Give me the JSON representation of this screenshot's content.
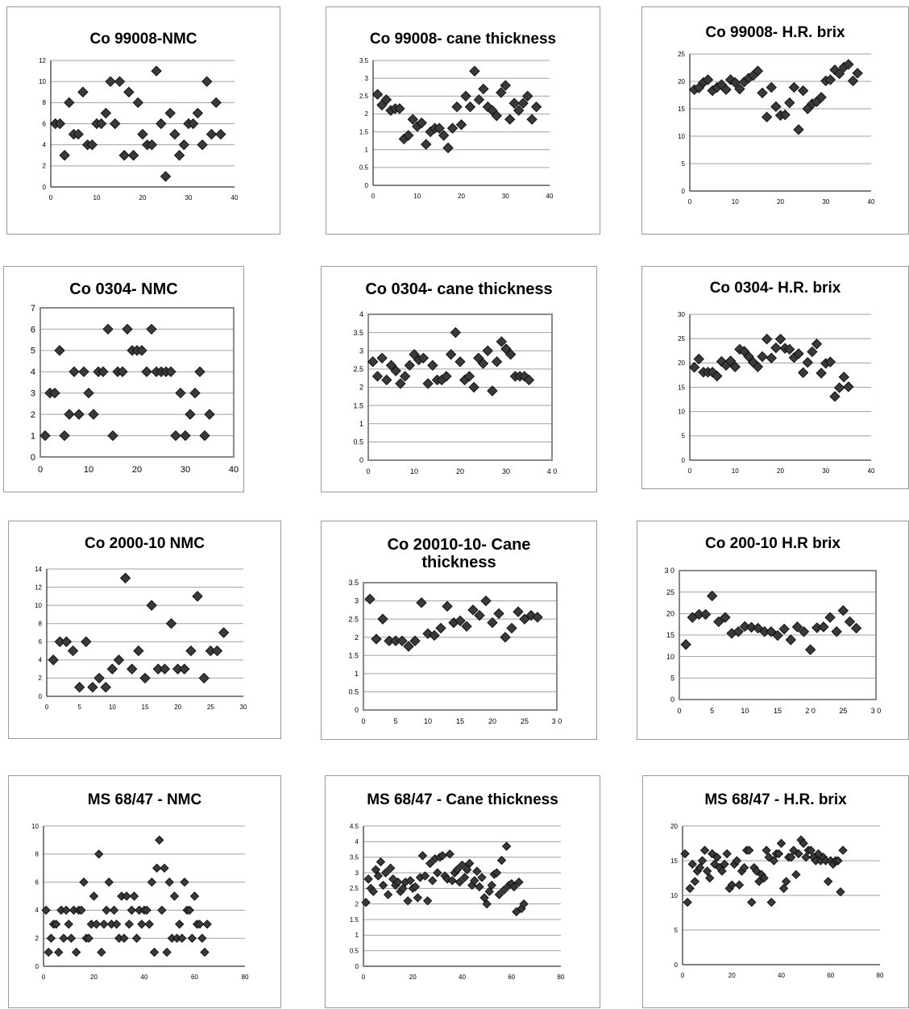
{
  "colors": {
    "marker": "#3a3a3a",
    "grid": "#a0a0a0",
    "frame": "#8a8a8a"
  },
  "chart_data": [
    {
      "type": "scatter",
      "title": "Co 99008-NMC",
      "xlim": [
        0,
        40
      ],
      "ylim": [
        0,
        12
      ],
      "xticks": [
        "0",
        "10",
        "20",
        "30",
        "40"
      ],
      "yticks": [
        "0",
        "2",
        "4",
        "6",
        "8",
        "10",
        "12"
      ],
      "x": [
        1,
        2,
        3,
        4,
        5,
        6,
        7,
        8,
        9,
        10,
        11,
        12,
        13,
        14,
        15,
        16,
        17,
        18,
        19,
        20,
        21,
        22,
        23,
        24,
        25,
        26,
        27,
        28,
        29,
        30,
        31,
        32,
        33,
        34,
        35,
        36,
        37
      ],
      "y": [
        6,
        6,
        3,
        8,
        5,
        5,
        9,
        4,
        4,
        6,
        6,
        7,
        10,
        6,
        10,
        3,
        9,
        3,
        8,
        5,
        4,
        4,
        11,
        6,
        1,
        7,
        5,
        3,
        4,
        6,
        6,
        7,
        4,
        10,
        5,
        8,
        5
      ]
    },
    {
      "type": "scatter",
      "title": "Co 99008- cane thickness",
      "xlim": [
        0,
        40
      ],
      "ylim": [
        0,
        3.5
      ],
      "xticks": [
        "0",
        "10",
        "20",
        "30",
        "40"
      ],
      "yticks": [
        "0",
        "0.5",
        "1",
        "1.5",
        "2",
        "2.5",
        "3",
        "3.5"
      ],
      "x": [
        1,
        2,
        3,
        4,
        5,
        6,
        7,
        8,
        9,
        10,
        11,
        12,
        13,
        14,
        15,
        16,
        17,
        18,
        19,
        20,
        21,
        22,
        23,
        24,
        25,
        26,
        27,
        28,
        29,
        30,
        31,
        32,
        33,
        34,
        35,
        36,
        37
      ],
      "y": [
        2.55,
        2.25,
        2.4,
        2.1,
        2.15,
        2.15,
        1.3,
        1.4,
        1.85,
        1.65,
        1.75,
        1.15,
        1.5,
        1.6,
        1.6,
        1.4,
        1.05,
        1.6,
        2.2,
        1.7,
        2.5,
        2.2,
        3.2,
        2.4,
        2.7,
        2.2,
        2.1,
        1.95,
        2.6,
        2.8,
        1.85,
        2.3,
        2.1,
        2.3,
        2.5,
        1.85,
        2.2
      ]
    },
    {
      "type": "scatter",
      "title": "Co 99008- H.R. brix",
      "xlim": [
        0,
        40
      ],
      "ylim": [
        0,
        25
      ],
      "xticks": [
        "0",
        "10",
        "20",
        "30",
        "40"
      ],
      "yticks": [
        "0",
        "5",
        "10",
        "15",
        "20",
        "25"
      ],
      "x": [
        1,
        2,
        3,
        4,
        5,
        6,
        7,
        8,
        9,
        10,
        11,
        12,
        13,
        14,
        15,
        16,
        17,
        18,
        19,
        20,
        21,
        22,
        23,
        24,
        25,
        26,
        27,
        28,
        29,
        30,
        31,
        32,
        33,
        34,
        35,
        36,
        37
      ],
      "y": [
        18.5,
        18.8,
        19.8,
        20.3,
        18.3,
        18.9,
        19.4,
        18.5,
        20.3,
        19.8,
        18.6,
        19.9,
        20.6,
        21.1,
        21.9,
        17.9,
        13.5,
        18.9,
        15.4,
        13.8,
        13.9,
        16.1,
        18.9,
        11.2,
        18.3,
        15,
        15.9,
        16.3,
        17.1,
        20.1,
        20.3,
        22.1,
        21.4,
        22.6,
        23.1,
        20.1,
        21.5
      ]
    },
    {
      "type": "scatter",
      "title": "Co 0304- NMC",
      "xlim": [
        0,
        40
      ],
      "ylim": [
        0,
        7
      ],
      "xticks": [
        "0",
        "10",
        "20",
        "30",
        "40"
      ],
      "yticks": [
        "0",
        "1",
        "2",
        "3",
        "4",
        "5",
        "6",
        "7"
      ],
      "x": [
        1,
        2,
        3,
        4,
        5,
        6,
        7,
        8,
        9,
        10,
        11,
        12,
        13,
        14,
        15,
        16,
        17,
        18,
        19,
        20,
        21,
        22,
        23,
        24,
        25,
        26,
        27,
        28,
        29,
        30,
        31,
        32,
        33,
        34,
        35
      ],
      "y": [
        1,
        3,
        3,
        5,
        1,
        2,
        4,
        2,
        4,
        3,
        2,
        4,
        4,
        6,
        1,
        4,
        4,
        6,
        5,
        5,
        5,
        4,
        6,
        4,
        4,
        4,
        4,
        1,
        3,
        1,
        2,
        3,
        4,
        1,
        2
      ]
    },
    {
      "type": "scatter",
      "title": "Co 0304- cane thickness",
      "xlim": [
        0,
        40
      ],
      "ylim": [
        0,
        4
      ],
      "xticks": [
        "0",
        "10",
        "20",
        "30",
        "4 0"
      ],
      "yticks": [
        "0",
        "0.5",
        "1",
        "1.5",
        "2",
        "2.5",
        "3",
        "3.5",
        "4"
      ],
      "x": [
        1,
        2,
        3,
        4,
        5,
        6,
        7,
        8,
        9,
        10,
        11,
        12,
        13,
        14,
        15,
        16,
        17,
        18,
        19,
        20,
        21,
        22,
        23,
        24,
        25,
        26,
        27,
        28,
        29,
        30,
        31,
        32,
        33,
        34,
        35
      ],
      "y": [
        2.7,
        2.3,
        2.8,
        2.2,
        2.6,
        2.45,
        2.1,
        2.3,
        2.6,
        2.9,
        2.75,
        2.8,
        2.1,
        2.6,
        2.2,
        2.2,
        2.3,
        2.9,
        3.5,
        2.7,
        2.2,
        2.3,
        2.0,
        2.8,
        2.65,
        3.0,
        1.9,
        2.7,
        3.25,
        3.05,
        2.9,
        2.3,
        2.3,
        2.3,
        2.2
      ]
    },
    {
      "type": "scatter",
      "title": "Co 0304- H.R. brix",
      "xlim": [
        0,
        40
      ],
      "ylim": [
        0,
        30
      ],
      "xticks": [
        "0",
        "10",
        "20",
        "30",
        "40"
      ],
      "yticks": [
        "0",
        "5",
        "10",
        "15",
        "20",
        "25",
        "30"
      ],
      "x": [
        1,
        2,
        3,
        4,
        5,
        6,
        7,
        8,
        9,
        10,
        11,
        12,
        13,
        14,
        15,
        16,
        17,
        18,
        19,
        20,
        21,
        22,
        23,
        24,
        25,
        26,
        27,
        28,
        29,
        30,
        31,
        32,
        33,
        34,
        35
      ],
      "y": [
        19.1,
        20.8,
        18.1,
        18.1,
        18.1,
        17.3,
        20.3,
        19.5,
        20.4,
        19.2,
        22.8,
        22.4,
        21.3,
        20.1,
        19.2,
        21.3,
        24.9,
        21,
        23.1,
        24.9,
        23,
        22.8,
        21.1,
        21.9,
        18,
        20.1,
        22.3,
        23.9,
        17.9,
        19.9,
        20.2,
        13.1,
        14.9,
        17.1,
        15.1
      ]
    },
    {
      "type": "scatter",
      "title": "Co 2000-10 NMC",
      "xlim": [
        0,
        30
      ],
      "ylim": [
        0,
        14
      ],
      "xticks": [
        "0",
        "5",
        "10",
        "15",
        "20",
        "25",
        "30"
      ],
      "yticks": [
        "0",
        "2",
        "4",
        "6",
        "8",
        "10",
        "12",
        "14"
      ],
      "x": [
        1,
        2,
        3,
        4,
        5,
        6,
        7,
        8,
        9,
        10,
        11,
        12,
        13,
        14,
        15,
        16,
        17,
        18,
        19,
        20,
        21,
        22,
        23,
        24,
        25,
        26,
        27
      ],
      "y": [
        4,
        6,
        6,
        5,
        1,
        6,
        1,
        2,
        1,
        3,
        4,
        13,
        3,
        5,
        2,
        10,
        3,
        3,
        8,
        3,
        3,
        5,
        11,
        2,
        5,
        5,
        7
      ]
    },
    {
      "type": "scatter",
      "title": "Co 20010-10- Cane thickness",
      "xlim": [
        0,
        30
      ],
      "ylim": [
        0,
        3.5
      ],
      "xticks": [
        "0",
        "5",
        "10",
        "15",
        "20",
        "25",
        "3 0"
      ],
      "yticks": [
        "0",
        "0.5",
        "1",
        "1.5",
        "2",
        "2.5",
        "3",
        "3.5"
      ],
      "x": [
        1,
        2,
        3,
        4,
        5,
        6,
        7,
        8,
        9,
        10,
        11,
        12,
        13,
        14,
        15,
        16,
        17,
        18,
        19,
        20,
        21,
        22,
        23,
        24,
        25,
        26,
        27
      ],
      "y": [
        3.05,
        1.95,
        2.5,
        1.9,
        1.9,
        1.9,
        1.75,
        1.9,
        2.95,
        2.1,
        2.05,
        2.25,
        2.85,
        2.4,
        2.45,
        2.3,
        2.75,
        2.6,
        3.0,
        2.4,
        2.65,
        2.0,
        2.25,
        2.7,
        2.5,
        2.6,
        2.55
      ]
    },
    {
      "type": "scatter",
      "title": "Co 200-10 H.R brix",
      "xlim": [
        0,
        30
      ],
      "ylim": [
        0,
        30
      ],
      "xticks": [
        "0",
        "5",
        "10",
        "15",
        "2 0",
        "25",
        "3 0"
      ],
      "yticks": [
        "0",
        "5",
        "10",
        "15",
        "20",
        "25",
        "3 0"
      ],
      "x": [
        1,
        2,
        3,
        4,
        5,
        6,
        7,
        8,
        9,
        10,
        11,
        12,
        13,
        14,
        15,
        16,
        17,
        18,
        19,
        20,
        21,
        22,
        23,
        24,
        25,
        26,
        27
      ],
      "y": [
        12.8,
        19.1,
        19.8,
        19.8,
        24.1,
        18.1,
        19.1,
        15.4,
        15.8,
        17,
        16.8,
        16.6,
        15.8,
        15.8,
        14.9,
        16.4,
        13.9,
        16.9,
        15.8,
        11.6,
        16.7,
        16.9,
        19.1,
        15.8,
        20.7,
        18.1,
        16.6
      ]
    },
    {
      "type": "scatter",
      "title": "MS 68/47 - NMC",
      "xlim": [
        0,
        80
      ],
      "ylim": [
        0,
        10
      ],
      "xticks": [
        "0",
        "20",
        "40",
        "60",
        "80"
      ],
      "yticks": [
        "0",
        "2",
        "4",
        "6",
        "8",
        "10"
      ],
      "x": [
        1,
        2,
        3,
        4,
        5,
        6,
        7,
        8,
        9,
        10,
        11,
        12,
        13,
        14,
        15,
        16,
        17,
        18,
        19,
        20,
        21,
        22,
        23,
        24,
        25,
        26,
        27,
        28,
        29,
        30,
        31,
        32,
        33,
        34,
        35,
        36,
        37,
        38,
        39,
        40,
        41,
        42,
        43,
        44,
        45,
        46,
        47,
        48,
        49,
        50,
        51,
        52,
        53,
        54,
        55,
        56,
        57,
        58,
        59,
        60,
        61,
        62,
        63,
        64,
        65
      ],
      "y": [
        4,
        1,
        2,
        3,
        3,
        1,
        4,
        2,
        4,
        3,
        2,
        4,
        1,
        4,
        4,
        6,
        2,
        2,
        3,
        5,
        3,
        8,
        1,
        3,
        4,
        6,
        3,
        4,
        3,
        2,
        5,
        2,
        5,
        3,
        4,
        5,
        2,
        4,
        3,
        4,
        4,
        3,
        6,
        1,
        7,
        9,
        4,
        7,
        1,
        6,
        2,
        5,
        2,
        3,
        2,
        6,
        4,
        4,
        2,
        5,
        3,
        3,
        2,
        1,
        3
      ]
    },
    {
      "type": "scatter",
      "title": "MS 68/47 - Cane thickness",
      "xlim": [
        0,
        80
      ],
      "ylim": [
        0,
        4.5
      ],
      "xticks": [
        "0",
        "20",
        "40",
        "60",
        "80"
      ],
      "yticks": [
        "0",
        "0.5",
        "1",
        "1.5",
        "2",
        "2.5",
        "3",
        "3.5",
        "4",
        "4.5"
      ],
      "x": [
        1,
        2,
        3,
        4,
        5,
        6,
        7,
        8,
        9,
        10,
        11,
        12,
        13,
        14,
        15,
        16,
        17,
        18,
        19,
        20,
        21,
        22,
        23,
        24,
        25,
        26,
        27,
        28,
        29,
        30,
        31,
        32,
        33,
        34,
        35,
        36,
        37,
        38,
        39,
        40,
        41,
        42,
        43,
        44,
        45,
        46,
        47,
        48,
        49,
        50,
        51,
        52,
        53,
        54,
        55,
        56,
        57,
        58,
        59,
        60,
        61,
        62,
        63,
        64,
        65
      ],
      "y": [
        2.05,
        2.8,
        2.5,
        2.4,
        3.1,
        2.9,
        3.35,
        2.6,
        3.0,
        2.3,
        3.15,
        2.8,
        2.6,
        2.7,
        2.4,
        2.5,
        2.7,
        2.1,
        2.75,
        2.5,
        2.55,
        2.2,
        2.85,
        3.55,
        2.9,
        2.1,
        3.3,
        2.75,
        3.45,
        3.0,
        3.5,
        3.55,
        2.9,
        2.8,
        3.6,
        2.75,
        3.0,
        3.1,
        2.7,
        3.25,
        2.85,
        3.1,
        3.3,
        2.6,
        2.75,
        3.05,
        2.55,
        2.85,
        2.2,
        2.0,
        2.4,
        2.6,
        2.95,
        3.0,
        2.3,
        3.4,
        2.45,
        3.85,
        2.6,
        2.65,
        2.55,
        1.75,
        2.7,
        1.85,
        2.0
      ]
    },
    {
      "type": "scatter",
      "title": "MS 68/47 - H.R. brix",
      "xlim": [
        0,
        80
      ],
      "ylim": [
        0,
        20
      ],
      "xticks": [
        "0",
        "20",
        "40",
        "60",
        "80"
      ],
      "yticks": [
        "0",
        "5",
        "10",
        "15",
        "20"
      ],
      "x": [
        1,
        2,
        3,
        4,
        5,
        6,
        7,
        8,
        9,
        10,
        11,
        12,
        13,
        14,
        15,
        16,
        17,
        18,
        19,
        20,
        21,
        22,
        23,
        24,
        25,
        26,
        27,
        28,
        29,
        30,
        31,
        32,
        33,
        34,
        35,
        36,
        37,
        38,
        39,
        40,
        41,
        42,
        43,
        44,
        45,
        46,
        47,
        48,
        49,
        50,
        51,
        52,
        53,
        54,
        55,
        56,
        57,
        58,
        59,
        60,
        61,
        62,
        63,
        64,
        65
      ],
      "y": [
        16,
        9,
        11,
        14.5,
        12,
        13.5,
        14,
        15,
        16.5,
        13.5,
        12.5,
        16,
        14.5,
        15.5,
        14,
        13.5,
        14.5,
        16,
        11,
        11.5,
        14.5,
        15,
        11.5,
        13.5,
        14,
        16.5,
        16.5,
        9,
        14,
        13.5,
        12,
        13,
        12.5,
        16.5,
        15.5,
        9,
        15,
        16,
        16,
        17.5,
        11,
        12,
        15.5,
        15.5,
        16.5,
        13,
        16,
        18,
        17.5,
        15.5,
        16.5,
        16.5,
        15.5,
        15,
        16,
        15,
        15.5,
        15,
        12,
        15,
        14.5,
        15,
        15,
        10.5,
        16.5
      ]
    }
  ]
}
